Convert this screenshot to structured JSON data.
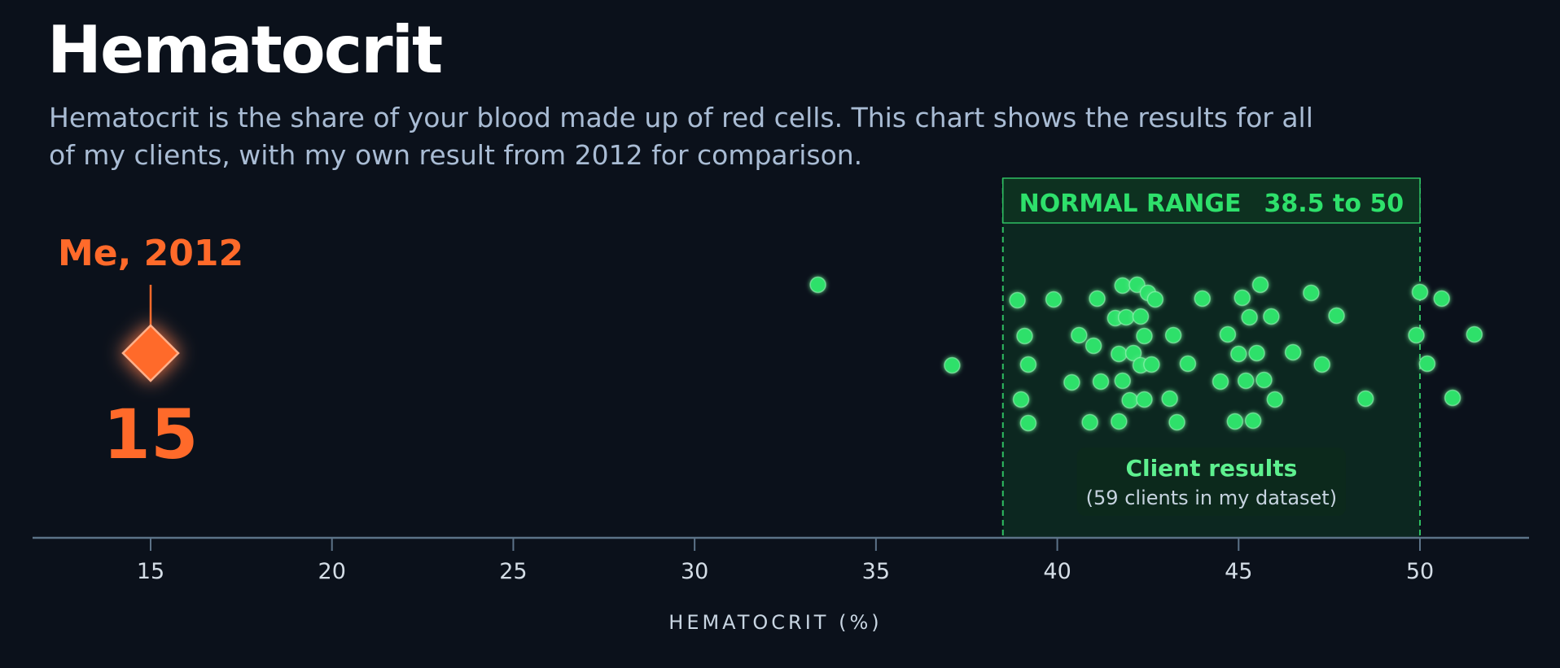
{
  "title": "Hematocrit",
  "subtitle": "Hematocrit is the share of your blood made up of red cells. This chart shows the results for all of my clients, with my own result from 2012 for comparison.",
  "colors": {
    "background": "#0b111b",
    "client": "#2ee06b",
    "highlight": "#ff6a2a",
    "axis": "#5c7388",
    "band_fill": "#0e3a24",
    "band_stroke": "#2fbf62"
  },
  "chart_data": {
    "type": "scatter",
    "xlabel": "HEMATOCRIT (%)",
    "ylabel": "",
    "xlim": [
      11.8,
      52.3
    ],
    "xticks": [
      15,
      20,
      25,
      30,
      35,
      40,
      45,
      50
    ],
    "grid": false,
    "normal_range": {
      "label": "NORMAL RANGE",
      "range_text": "38.5 to 50",
      "low": 38.5,
      "high": 50
    },
    "highlight": {
      "name": "Me, 2012",
      "value": 15,
      "value_label": "15",
      "marker": "diamond"
    },
    "series": [
      {
        "name": "Client results",
        "note": "(59 clients in my dataset)",
        "marker": "circle",
        "values": [
          33.4,
          37.1,
          38.9,
          39.0,
          39.1,
          39.2,
          39.2,
          39.9,
          40.4,
          40.6,
          40.9,
          41.0,
          41.1,
          41.2,
          41.6,
          41.7,
          41.7,
          41.8,
          41.8,
          41.9,
          42.0,
          42.1,
          42.2,
          42.3,
          42.3,
          42.4,
          42.4,
          42.5,
          42.6,
          42.7,
          43.1,
          43.2,
          43.3,
          43.6,
          44.0,
          44.5,
          44.7,
          44.9,
          45.0,
          45.1,
          45.2,
          45.3,
          45.4,
          45.5,
          45.6,
          45.7,
          45.9,
          46.0,
          46.5,
          47.0,
          47.3,
          47.7,
          48.5,
          49.9,
          50.0,
          50.2,
          50.6,
          50.9,
          51.5
        ]
      }
    ]
  }
}
